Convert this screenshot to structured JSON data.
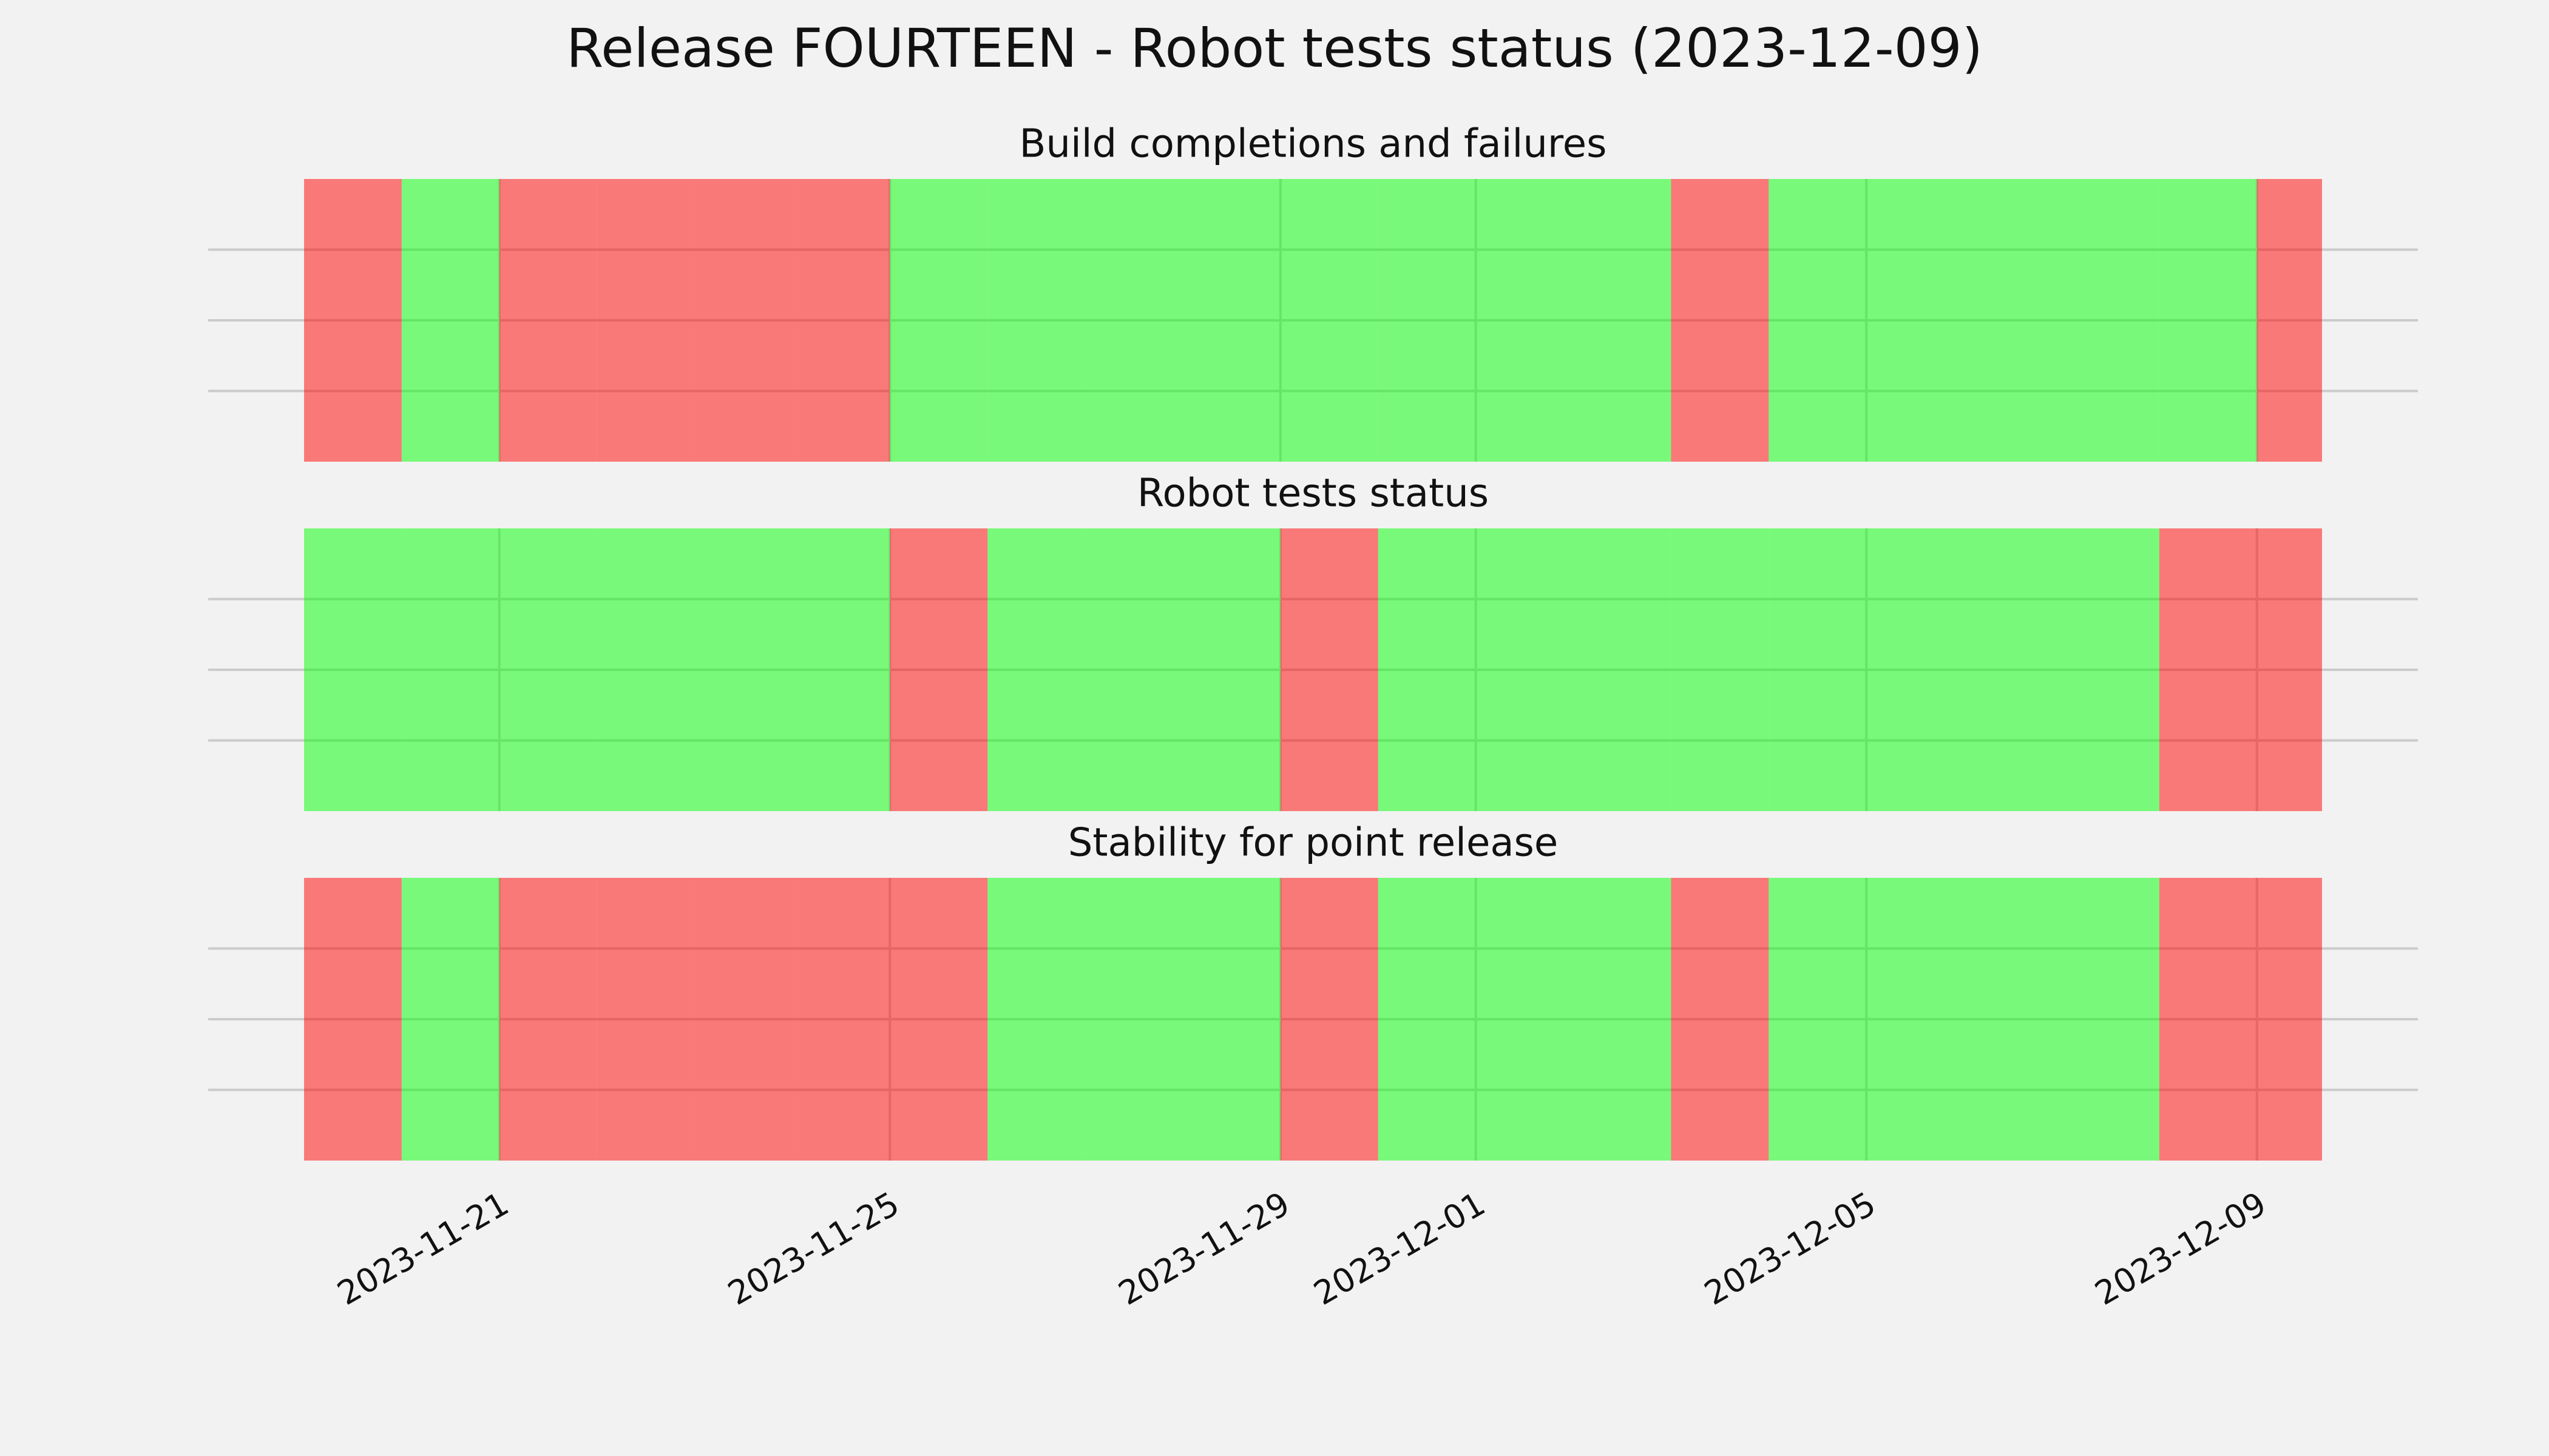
{
  "chart_data": {
    "type": "status_timeline",
    "title": "Release FOURTEEN - Robot tests status (2023-12-09)",
    "x": [
      "2023-11-19",
      "2023-11-20",
      "2023-11-21",
      "2023-11-22",
      "2023-11-23",
      "2023-11-24",
      "2023-11-25",
      "2023-11-26",
      "2023-11-27",
      "2023-11-28",
      "2023-11-29",
      "2023-11-30",
      "2023-12-01",
      "2023-12-02",
      "2023-12-03",
      "2023-12-04",
      "2023-12-05",
      "2023-12-06",
      "2023-12-07",
      "2023-12-08",
      "2023-12-09"
    ],
    "xlim": [
      "2023-11-19",
      "2023-12-09T16:00"
    ],
    "xticks": [
      "2023-11-21",
      "2023-11-25",
      "2023-11-29",
      "2023-12-01",
      "2023-12-05",
      "2023-12-09"
    ],
    "ylim": [
      0,
      1
    ],
    "yticks": [
      0.25,
      0.5,
      0.75
    ],
    "grid": true,
    "status_colors": [
      "#ff0000",
      "#00ff00"
    ],
    "alpha": 0.5,
    "series": [
      {
        "name": "Build completions and failures",
        "values": [
          0,
          1,
          0,
          0,
          0,
          0,
          1,
          1,
          1,
          1,
          1,
          1,
          1,
          1,
          0,
          1,
          1,
          1,
          1,
          1,
          0
        ]
      },
      {
        "name": "Robot tests status",
        "values": [
          1,
          1,
          1,
          1,
          1,
          1,
          0,
          1,
          1,
          1,
          0,
          1,
          1,
          1,
          1,
          1,
          1,
          1,
          1,
          0,
          0
        ]
      },
      {
        "name": "Stability for point release",
        "values": [
          0,
          1,
          0,
          0,
          0,
          0,
          0,
          1,
          1,
          1,
          0,
          1,
          1,
          1,
          0,
          1,
          1,
          1,
          1,
          0,
          0
        ]
      }
    ]
  }
}
